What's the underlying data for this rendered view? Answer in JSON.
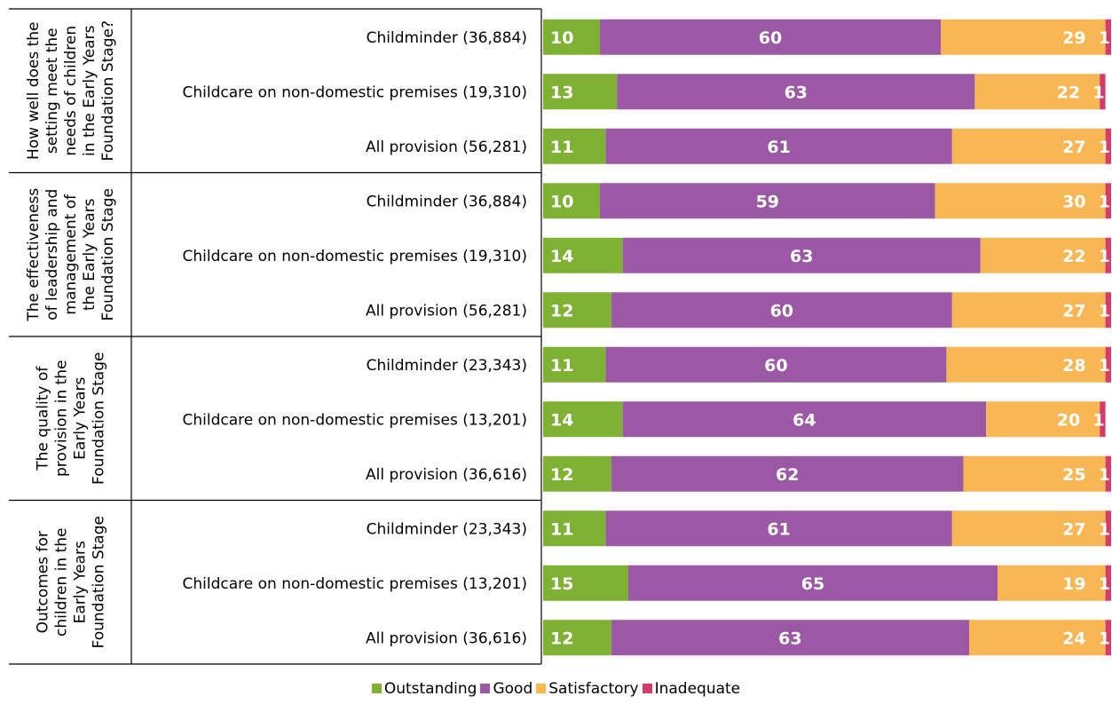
{
  "chart_data": {
    "type": "bar",
    "orientation": "horizontal",
    "stacked": true,
    "xlim": [
      0,
      100
    ],
    "groups": [
      {
        "label": "How well does the setting meet the needs of children in the Early Years Foundation Stage?",
        "label_lines": [
          "How well does the",
          "setting meet the",
          "needs of children",
          "in the Early Years",
          "Foundation Stage?"
        ],
        "rows": [
          {
            "label": "Childminder (36,884)",
            "values": [
              10,
              60,
              29,
              1
            ]
          },
          {
            "label": "Childcare on non-domestic premises (19,310)",
            "values": [
              13,
              63,
              22,
              1
            ]
          },
          {
            "label": "All provision (56,281)",
            "values": [
              11,
              61,
              27,
              1
            ]
          }
        ]
      },
      {
        "label": "The effectiveness of leadership and management of the Early Years Foundation Stage",
        "label_lines": [
          "The effectiveness",
          "of leadership and",
          "management of",
          "the Early Years",
          "Foundation Stage"
        ],
        "rows": [
          {
            "label": "Childminder (36,884)",
            "values": [
              10,
              59,
              30,
              1
            ]
          },
          {
            "label": "Childcare on non-domestic premises (19,310)",
            "values": [
              14,
              63,
              22,
              1
            ]
          },
          {
            "label": "All provision (56,281)",
            "values": [
              12,
              60,
              27,
              1
            ]
          }
        ]
      },
      {
        "label": "The quality of provision in the Early Years Foundation Stage",
        "label_lines": [
          "The quality of",
          "provision in the",
          "Early Years",
          "Foundation Stage"
        ],
        "rows": [
          {
            "label": "Childminder (23,343)",
            "values": [
              11,
              60,
              28,
              1
            ]
          },
          {
            "label": "Childcare on non-domestic premises (13,201)",
            "values": [
              14,
              64,
              20,
              1
            ]
          },
          {
            "label": "All provision (36,616)",
            "values": [
              12,
              62,
              25,
              1
            ]
          }
        ]
      },
      {
        "label": "Outcomes for children in the Early Years Foundation Stage",
        "label_lines": [
          "Outcomes for",
          "children in the",
          "Early Years",
          "Foundation Stage"
        ],
        "rows": [
          {
            "label": "Childminder (23,343)",
            "values": [
              11,
              61,
              27,
              1
            ]
          },
          {
            "label": "Childcare on non-domestic premises (13,201)",
            "values": [
              15,
              65,
              19,
              1
            ]
          },
          {
            "label": "All provision (36,616)",
            "values": [
              12,
              63,
              24,
              1
            ]
          }
        ]
      }
    ],
    "series": [
      {
        "name": "Outstanding",
        "color": "#7fb135"
      },
      {
        "name": "Good",
        "color": "#9b59a5"
      },
      {
        "name": "Satisfactory",
        "color": "#f8b655"
      },
      {
        "name": "Inadequate",
        "color": "#d23d6a"
      }
    ],
    "legend_position": "bottom",
    "grid": false
  }
}
